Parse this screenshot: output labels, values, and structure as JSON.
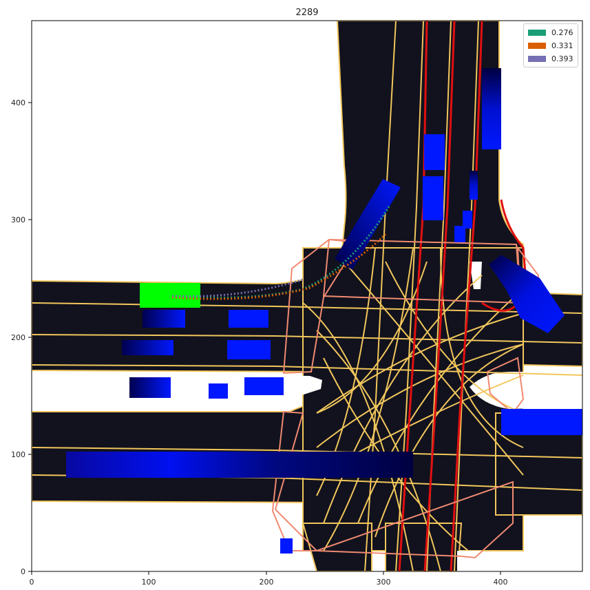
{
  "title": "2289",
  "x_ticks": [
    "0",
    "100",
    "200",
    "300",
    "400"
  ],
  "y_ticks": [
    "0",
    "100",
    "200",
    "300",
    "400"
  ],
  "legend": [
    {
      "label": "0.276",
      "color": "#1b9e77"
    },
    {
      "label": "0.331",
      "color": "#d95f02"
    },
    {
      "label": "0.393",
      "color": "#7570b3"
    }
  ],
  "colors": {
    "road": "#12121e",
    "lane_line": "#f2c75c",
    "crosswalk": "#f08a70",
    "stop_line": "#e01010",
    "ego": "#00ff00",
    "agent": "#0010ff"
  }
}
